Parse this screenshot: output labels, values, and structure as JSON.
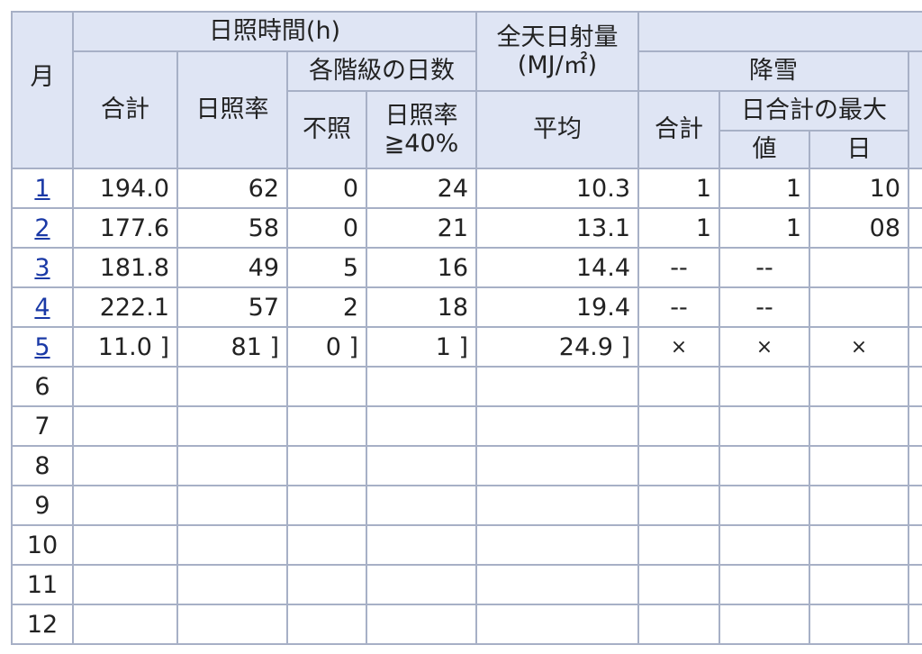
{
  "headers": {
    "month": "月",
    "sunshine_group": "日照時間(h)",
    "sunshine_total": "合計",
    "sunshine_rate": "日照率",
    "class_days": "各階級の日数",
    "no_sun": "不照",
    "rate40_line1": "日照率",
    "rate40_line2": "≧40%",
    "solar_line1": "全天日射量",
    "solar_line2": "(MJ/㎡)",
    "solar_avg": "平均",
    "snow_group": "降雪",
    "snow_total": "合計",
    "daily_max": "日合計の最大",
    "max_value": "値",
    "max_day": "日"
  },
  "rows": [
    {
      "month": "1",
      "link": true,
      "sun_total": "194.0",
      "sun_rate": "62",
      "no_sun": "0",
      "rate40": "24",
      "solar": "10.3",
      "snow_total": "1",
      "max_value": "1",
      "max_day": "10"
    },
    {
      "month": "2",
      "link": true,
      "sun_total": "177.6",
      "sun_rate": "58",
      "no_sun": "0",
      "rate40": "21",
      "solar": "13.1",
      "snow_total": "1",
      "max_value": "1",
      "max_day": "08"
    },
    {
      "month": "3",
      "link": true,
      "sun_total": "181.8",
      "sun_rate": "49",
      "no_sun": "5",
      "rate40": "16",
      "solar": "14.4",
      "snow_total": "--",
      "max_value": "--",
      "max_day": ""
    },
    {
      "month": "4",
      "link": true,
      "sun_total": "222.1",
      "sun_rate": "57",
      "no_sun": "2",
      "rate40": "18",
      "solar": "19.4",
      "snow_total": "--",
      "max_value": "--",
      "max_day": ""
    },
    {
      "month": "5",
      "link": true,
      "sun_total": "11.0 ]",
      "sun_rate": "81 ]",
      "no_sun": "0 ]",
      "rate40": "1 ]",
      "solar": "24.9 ]",
      "snow_total": "×",
      "max_value": "×",
      "max_day": "×"
    },
    {
      "month": "6",
      "link": false,
      "sun_total": "",
      "sun_rate": "",
      "no_sun": "",
      "rate40": "",
      "solar": "",
      "snow_total": "",
      "max_value": "",
      "max_day": ""
    },
    {
      "month": "7",
      "link": false,
      "sun_total": "",
      "sun_rate": "",
      "no_sun": "",
      "rate40": "",
      "solar": "",
      "snow_total": "",
      "max_value": "",
      "max_day": ""
    },
    {
      "month": "8",
      "link": false,
      "sun_total": "",
      "sun_rate": "",
      "no_sun": "",
      "rate40": "",
      "solar": "",
      "snow_total": "",
      "max_value": "",
      "max_day": ""
    },
    {
      "month": "9",
      "link": false,
      "sun_total": "",
      "sun_rate": "",
      "no_sun": "",
      "rate40": "",
      "solar": "",
      "snow_total": "",
      "max_value": "",
      "max_day": ""
    },
    {
      "month": "10",
      "link": false,
      "sun_total": "",
      "sun_rate": "",
      "no_sun": "",
      "rate40": "",
      "solar": "",
      "snow_total": "",
      "max_value": "",
      "max_day": ""
    },
    {
      "month": "11",
      "link": false,
      "sun_total": "",
      "sun_rate": "",
      "no_sun": "",
      "rate40": "",
      "solar": "",
      "snow_total": "",
      "max_value": "",
      "max_day": ""
    },
    {
      "month": "12",
      "link": false,
      "sun_total": "",
      "sun_rate": "",
      "no_sun": "",
      "rate40": "",
      "solar": "",
      "snow_total": "",
      "max_value": "",
      "max_day": ""
    }
  ]
}
